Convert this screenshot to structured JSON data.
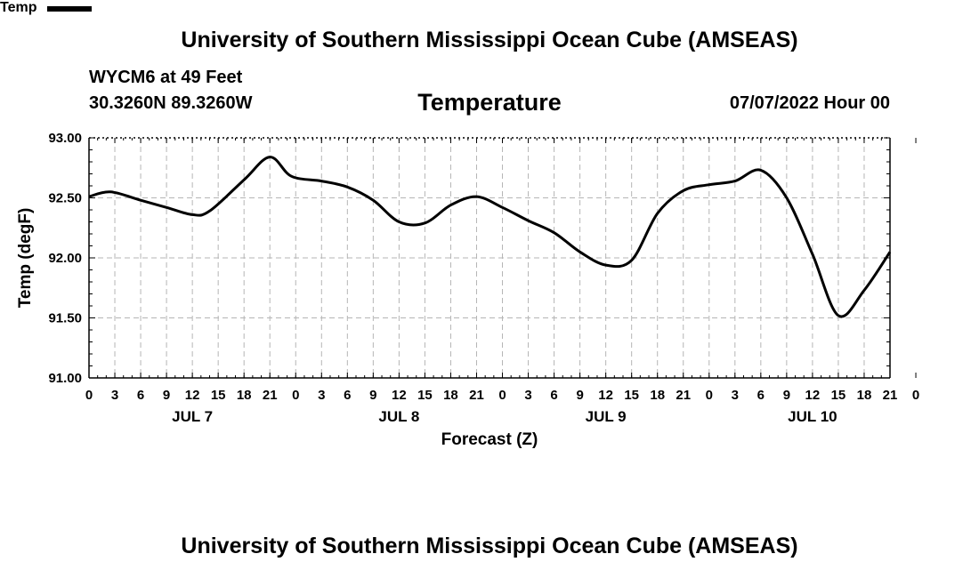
{
  "header": {
    "title": "University of Southern Mississippi Ocean Cube (AMSEAS)",
    "station": "WYCM6 at 49 Feet",
    "coords": "30.3260N  89.3260W",
    "chart_title": "Temperature",
    "datetime": "07/07/2022 Hour 00"
  },
  "footer": {
    "title": "University of Southern Mississippi Ocean Cube (AMSEAS)"
  },
  "legend": {
    "label": "Temp",
    "color": "#000000"
  },
  "chart_data": {
    "type": "line",
    "title": "Temperature",
    "xlabel": "Forecast (Z)",
    "ylabel": "Temp (degF)",
    "ylim": [
      91.0,
      93.0
    ],
    "yticks": [
      "91.00",
      "91.50",
      "92.00",
      "92.50",
      "93.00"
    ],
    "xlim": [
      0,
      93
    ],
    "x_tick_labels": [
      "0",
      "3",
      "6",
      "9",
      "12",
      "15",
      "18",
      "21",
      "0",
      "3",
      "6",
      "9",
      "12",
      "15",
      "18",
      "21",
      "0",
      "3",
      "6",
      "9",
      "12",
      "15",
      "18",
      "21",
      "0",
      "3",
      "6",
      "9",
      "12",
      "15",
      "18",
      "21",
      "0"
    ],
    "day_labels": [
      {
        "label": "JUL 7",
        "hour": 12
      },
      {
        "label": "JUL 8",
        "hour": 36
      },
      {
        "label": "JUL 9",
        "hour": 60
      },
      {
        "label": "JUL 10",
        "hour": 84
      }
    ],
    "grid": true,
    "series": [
      {
        "name": "Temp",
        "color": "#000000",
        "x": [
          0,
          2.5,
          6,
          9,
          12,
          14,
          18,
          21,
          23.5,
          27,
          30,
          33,
          36,
          39,
          42,
          45,
          48,
          51,
          54,
          57,
          60,
          63,
          66,
          69,
          72,
          75,
          78,
          81,
          84,
          87,
          90,
          93
        ],
        "y": [
          92.51,
          92.55,
          92.48,
          92.42,
          92.36,
          92.39,
          92.65,
          92.84,
          92.68,
          92.64,
          92.59,
          92.48,
          92.3,
          92.29,
          92.44,
          92.51,
          92.42,
          92.31,
          92.21,
          92.05,
          91.94,
          91.98,
          92.37,
          92.56,
          92.61,
          92.64,
          92.73,
          92.5,
          92.03,
          91.52,
          91.73,
          92.05
        ]
      }
    ]
  }
}
